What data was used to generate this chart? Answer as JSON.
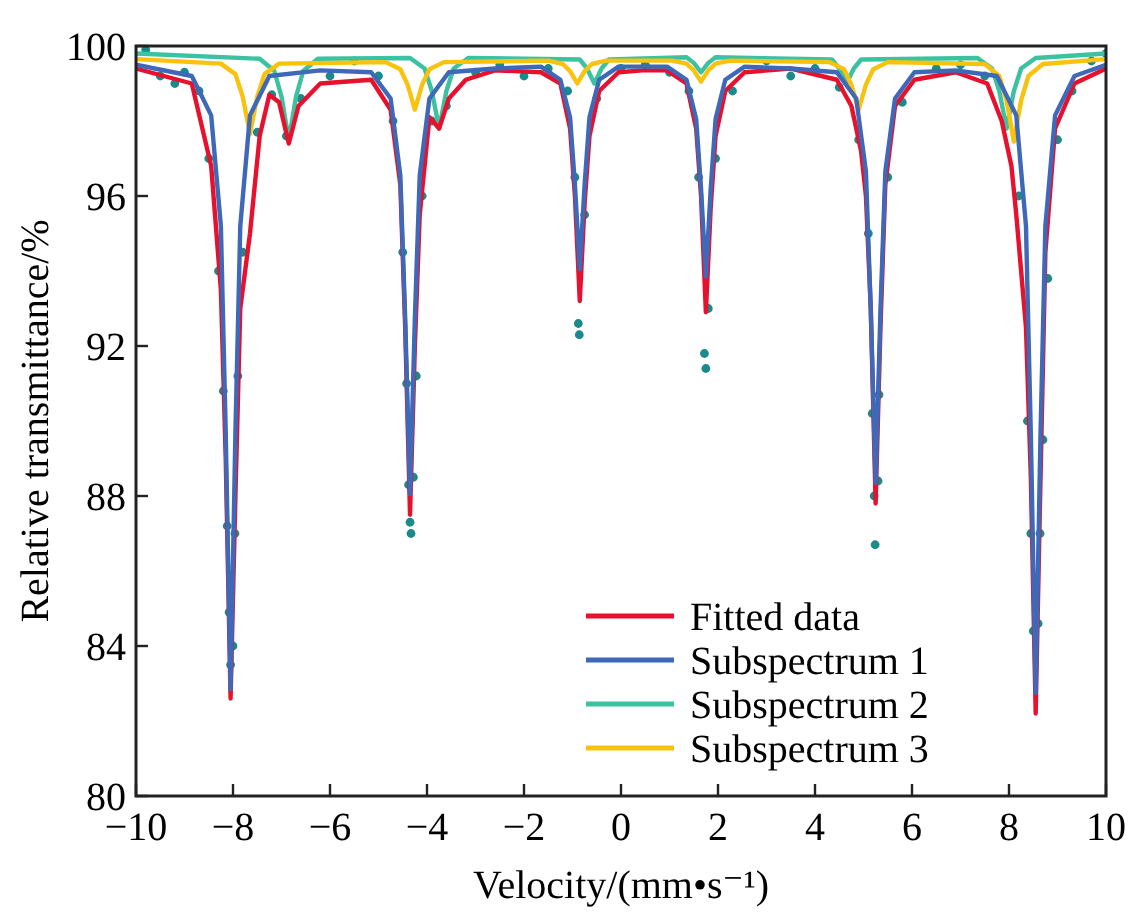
{
  "chart_data": {
    "type": "line",
    "xlabel": "Velocity/(mm•s⁻¹)",
    "ylabel": "Relative transmittance/%",
    "xlim": [
      -10,
      10
    ],
    "xticks": [
      -10,
      -8,
      -6,
      -4,
      -2,
      0,
      2,
      4,
      6,
      8,
      10
    ],
    "ylim": [
      80,
      100
    ],
    "yticks": [
      80,
      84,
      88,
      92,
      96,
      100
    ],
    "legend": "bottom right",
    "grid": false,
    "series": [
      {
        "type": "scatter",
        "color": "#1a8a8a",
        "x": [
          -9.8,
          -9.5,
          -9.2,
          -9.0,
          -8.7,
          -8.5,
          -8.3,
          -8.2,
          -8.12,
          -8.08,
          -8.05,
          -8.0,
          -7.96,
          -7.9,
          -7.8,
          -7.5,
          -7.2,
          -6.9,
          -6.6,
          -6.0,
          -5.5,
          -5.0,
          -4.7,
          -4.5,
          -4.42,
          -4.38,
          -4.35,
          -4.33,
          -4.28,
          -4.22,
          -4.1,
          -3.9,
          -3.6,
          -3.0,
          -2.5,
          -2.0,
          -1.5,
          -1.1,
          -0.95,
          -0.88,
          -0.86,
          -0.75,
          -0.5,
          0,
          0.5,
          1.0,
          1.4,
          1.6,
          1.72,
          1.75,
          1.8,
          1.95,
          2.3,
          3.0,
          3.5,
          4.0,
          4.5,
          4.9,
          5.1,
          5.18,
          5.22,
          5.24,
          5.3,
          5.32,
          5.5,
          5.8,
          6.5,
          7.0,
          7.5,
          8.2,
          8.38,
          8.45,
          8.5,
          8.6,
          8.64,
          8.7,
          8.8,
          9.0,
          9.3,
          9.7,
          10
        ],
        "values": [
          99.9,
          99.2,
          99.0,
          99.3,
          98.8,
          97.0,
          94.0,
          90.8,
          87.2,
          84.9,
          83.5,
          84.0,
          87.0,
          91.2,
          94.5,
          97.7,
          98.7,
          97.6,
          98.6,
          99.2,
          99.6,
          99.2,
          98.0,
          94.5,
          91.0,
          88.3,
          87.3,
          87.0,
          88.5,
          91.2,
          96.0,
          98.0,
          98.4,
          99.3,
          99.5,
          99.2,
          99.4,
          98.8,
          96.5,
          92.6,
          92.3,
          95.5,
          98.6,
          99.4,
          99.5,
          99.3,
          98.8,
          96.5,
          91.8,
          91.4,
          93.0,
          97.0,
          98.8,
          99.6,
          99.2,
          99.4,
          98.9,
          97.5,
          95.0,
          90.2,
          88.0,
          86.7,
          88.4,
          90.7,
          96.5,
          98.5,
          99.4,
          99.5,
          99.2,
          96.0,
          90.0,
          87.0,
          84.4,
          84.6,
          87.0,
          89.5,
          93.8,
          97.5,
          98.8,
          99.6,
          99.8
        ]
      },
      {
        "name": "Subspectrum 2",
        "color": "#3cc2a0",
        "x": [
          -10,
          -7.45,
          -7.15,
          -7.0,
          -6.85,
          -6.7,
          -6.55,
          -6.25,
          -4.35,
          -4.05,
          -3.9,
          -3.75,
          -3.6,
          -3.45,
          -3.15,
          -0.85,
          -0.7,
          -0.55,
          -0.4,
          -0.25,
          1.35,
          1.5,
          1.65,
          1.8,
          1.95,
          4.35,
          4.5,
          4.65,
          4.8,
          4.95,
          7.35,
          7.65,
          7.8,
          7.95,
          8.1,
          8.25,
          8.55,
          10
        ],
        "values": [
          99.8,
          99.66,
          99.34,
          98.65,
          97.5,
          98.65,
          99.34,
          99.66,
          99.68,
          99.4,
          98.8,
          97.8,
          98.8,
          99.4,
          99.68,
          99.64,
          99.4,
          99.0,
          99.4,
          99.64,
          99.7,
          99.55,
          99.3,
          99.55,
          99.7,
          99.64,
          99.4,
          99.0,
          99.4,
          99.64,
          99.68,
          99.4,
          98.8,
          97.8,
          98.8,
          99.4,
          99.68,
          99.8
        ]
      },
      {
        "name": "Subspectrum 3",
        "color": "#f9c20f",
        "x": [
          -10,
          -8.25,
          -7.95,
          -7.8,
          -7.65,
          -7.5,
          -7.35,
          -7.05,
          -4.85,
          -4.55,
          -4.4,
          -4.25,
          -4.1,
          -3.95,
          -3.65,
          -1.5,
          -1.2,
          -1.05,
          -0.9,
          -0.75,
          -0.6,
          -0.3,
          1.05,
          1.35,
          1.5,
          1.65,
          1.8,
          1.95,
          2.25,
          4.3,
          4.6,
          4.75,
          4.9,
          5.05,
          5.2,
          5.5,
          7.5,
          7.8,
          7.95,
          8.1,
          8.25,
          8.4,
          8.7,
          10
        ],
        "values": [
          99.65,
          99.53,
          99.25,
          98.65,
          97.65,
          98.65,
          99.25,
          99.53,
          99.57,
          99.38,
          98.97,
          98.3,
          98.97,
          99.38,
          99.57,
          99.61,
          99.52,
          99.33,
          99.0,
          99.33,
          99.52,
          99.61,
          99.61,
          99.53,
          99.35,
          99.05,
          99.35,
          99.53,
          99.61,
          99.57,
          99.38,
          98.97,
          98.3,
          98.97,
          99.38,
          99.57,
          99.52,
          99.2,
          98.55,
          97.45,
          98.55,
          99.2,
          99.52,
          99.65
        ]
      },
      {
        "name": "Fitted data",
        "color": "#e8112d",
        "x": [
          -10,
          -8.85,
          -8.45,
          -8.25,
          -8.15,
          -8.05,
          -7.95,
          -7.85,
          -7.65,
          -7.45,
          -7.25,
          -7.05,
          -6.85,
          -6.65,
          -6.2,
          -5.15,
          -4.75,
          -4.55,
          -4.45,
          -4.35,
          -4.25,
          -4.15,
          -3.95,
          -3.75,
          -3.55,
          -3.2,
          -2.6,
          -1.65,
          -1.25,
          -1.05,
          -0.95,
          -0.85,
          -0.75,
          -0.65,
          -0.45,
          -0.05,
          0.45,
          0.95,
          1.35,
          1.55,
          1.65,
          1.75,
          1.85,
          1.95,
          2.15,
          2.55,
          3.5,
          4.45,
          4.75,
          4.95,
          5.05,
          5.15,
          5.25,
          5.35,
          5.45,
          5.65,
          6.05,
          6.9,
          7.55,
          7.85,
          8.05,
          8.15,
          8.35,
          8.45,
          8.55,
          8.65,
          8.75,
          8.95,
          9.35,
          10
        ],
        "values": [
          99.4,
          99.0,
          96.8,
          93.5,
          89.0,
          82.6,
          88.0,
          93.0,
          95.0,
          97.6,
          98.7,
          98.5,
          97.4,
          98.4,
          99.0,
          99.1,
          98.3,
          96.3,
          92.5,
          87.5,
          92.0,
          95.5,
          98.1,
          97.8,
          98.6,
          99.1,
          99.35,
          99.3,
          99.0,
          97.8,
          96.0,
          93.2,
          95.8,
          97.6,
          98.8,
          99.3,
          99.35,
          99.35,
          99.0,
          97.8,
          96.0,
          92.9,
          95.7,
          97.6,
          98.8,
          99.3,
          99.4,
          99.1,
          98.4,
          97.2,
          96.0,
          93.0,
          87.8,
          92.5,
          96.3,
          98.4,
          99.1,
          99.3,
          99.0,
          98.0,
          96.8,
          95.5,
          92.5,
          88.5,
          82.2,
          88.5,
          94.5,
          97.8,
          99.0,
          99.4
        ]
      },
      {
        "name": "Subspectrum 1",
        "color": "#3e68b8",
        "x": [
          -10,
          -8.85,
          -8.45,
          -8.25,
          -8.15,
          -8.05,
          -7.95,
          -7.85,
          -7.65,
          -7.25,
          -6.2,
          -5.15,
          -4.75,
          -4.55,
          -4.45,
          -4.35,
          -4.25,
          -4.15,
          -3.95,
          -3.55,
          -2.6,
          -1.65,
          -1.25,
          -1.05,
          -0.95,
          -0.85,
          -0.75,
          -0.65,
          -0.45,
          -0.05,
          0.45,
          0.95,
          1.35,
          1.55,
          1.65,
          1.75,
          1.85,
          1.95,
          2.15,
          2.55,
          3.5,
          4.45,
          4.85,
          5.05,
          5.15,
          5.25,
          5.35,
          5.45,
          5.65,
          6.05,
          6.9,
          7.75,
          8.15,
          8.35,
          8.45,
          8.55,
          8.65,
          8.75,
          8.95,
          9.35,
          10
        ],
        "values": [
          99.5,
          99.2,
          98.15,
          95.2,
          89.7,
          82.85,
          89.7,
          95.2,
          98.15,
          99.2,
          99.35,
          99.3,
          98.6,
          96.55,
          92.75,
          88.05,
          92.75,
          96.55,
          98.6,
          99.3,
          99.4,
          99.45,
          99.1,
          98.1,
          96.3,
          94.05,
          96.3,
          98.1,
          99.1,
          99.45,
          99.45,
          99.45,
          99.1,
          98.05,
          96.2,
          93.85,
          96.2,
          98.05,
          99.1,
          99.45,
          99.4,
          99.3,
          98.6,
          96.65,
          92.95,
          88.35,
          92.95,
          96.65,
          98.6,
          99.3,
          99.35,
          99.2,
          98.15,
          95.2,
          89.65,
          82.75,
          89.65,
          95.2,
          98.15,
          99.2,
          99.5
        ]
      }
    ]
  }
}
